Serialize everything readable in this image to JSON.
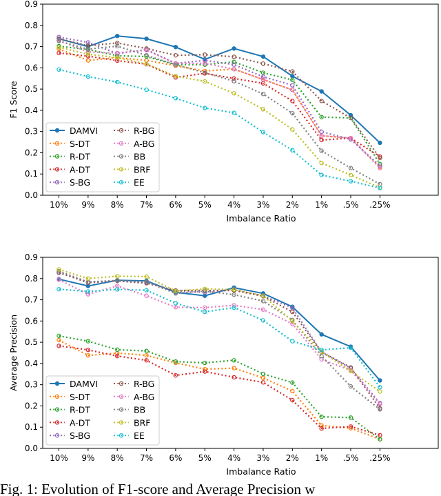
{
  "colors": {
    "DAMVI": "#1f77b4",
    "S-DT": "#ff7f0e",
    "R-DT": "#2ca02c",
    "A-DT": "#d62728",
    "S-BG": "#9467bd",
    "R-BG": "#8c564b",
    "A-BG": "#e377c2",
    "BB": "#7f7f7f",
    "BRF": "#bcbd22",
    "EE": "#17becf"
  },
  "caption": "Fig. 1: Evolution of F1-score and Average Precision w",
  "chart_data": [
    {
      "type": "line",
      "xlabel": "Imbalance Ratio",
      "ylabel": "F1 Score",
      "ylim": [
        0,
        0.9
      ],
      "yticks": [
        "0.0",
        "0.1",
        "0.2",
        "0.3",
        "0.4",
        "0.5",
        "0.6",
        "0.7",
        "0.8",
        "0.9"
      ],
      "categories": [
        "10%",
        "9%",
        "8%",
        "7%",
        "6%",
        "5%",
        "4%",
        "3%",
        "2%",
        "1%",
        ".5%",
        ".25%"
      ],
      "grid": false,
      "legend": "bottom-left",
      "series": [
        {
          "name": "DAMVI",
          "style": "solid",
          "values": [
            0.737,
            0.7,
            0.75,
            0.737,
            0.698,
            0.64,
            0.691,
            0.653,
            0.561,
            0.489,
            0.377,
            0.247
          ]
        },
        {
          "name": "S-DT",
          "style": "dotted",
          "values": [
            0.689,
            0.635,
            0.648,
            0.635,
            0.61,
            0.585,
            0.594,
            0.545,
            0.496,
            0.28,
            0.269,
            0.133
          ]
        },
        {
          "name": "R-DT",
          "style": "dotted",
          "values": [
            0.702,
            0.686,
            0.657,
            0.653,
            0.615,
            0.615,
            0.628,
            0.577,
            0.543,
            0.368,
            0.364,
            0.147
          ]
        },
        {
          "name": "A-DT",
          "style": "dotted",
          "values": [
            0.67,
            0.655,
            0.634,
            0.617,
            0.555,
            0.574,
            0.55,
            0.527,
            0.444,
            0.26,
            0.269,
            0.182
          ]
        },
        {
          "name": "S-BG",
          "style": "dotted",
          "values": [
            0.745,
            0.72,
            0.667,
            0.686,
            0.621,
            0.635,
            0.615,
            0.558,
            0.518,
            0.299,
            0.263,
            0.139
          ]
        },
        {
          "name": "R-BG",
          "style": "dotted",
          "values": [
            0.737,
            0.705,
            0.717,
            0.691,
            0.659,
            0.662,
            0.652,
            0.62,
            0.583,
            0.444,
            0.364,
            0.176
          ]
        },
        {
          "name": "A-BG",
          "style": "dotted",
          "values": [
            0.729,
            0.675,
            0.67,
            0.683,
            0.621,
            0.621,
            0.594,
            0.545,
            0.496,
            0.28,
            0.269,
            0.128
          ]
        },
        {
          "name": "BB",
          "style": "dotted",
          "values": [
            0.726,
            0.688,
            0.702,
            0.659,
            0.615,
            0.577,
            0.537,
            0.477,
            0.386,
            0.209,
            0.128,
            0.052
          ]
        },
        {
          "name": "BRF",
          "style": "dotted",
          "values": [
            0.697,
            0.664,
            0.648,
            0.618,
            0.561,
            0.536,
            0.48,
            0.405,
            0.31,
            0.152,
            0.095,
            0.036
          ]
        },
        {
          "name": "EE",
          "style": "dotted",
          "values": [
            0.592,
            0.559,
            0.533,
            0.497,
            0.457,
            0.411,
            0.388,
            0.297,
            0.212,
            0.095,
            0.066,
            0.034
          ]
        }
      ]
    },
    {
      "type": "line",
      "xlabel": "Imbalance Ratio",
      "ylabel": "Average Precision",
      "ylim": [
        0,
        0.9
      ],
      "yticks": [
        "0.0",
        "0.1",
        "0.2",
        "0.3",
        "0.4",
        "0.5",
        "0.6",
        "0.7",
        "0.8",
        "0.9"
      ],
      "categories": [
        "10%",
        "9%",
        "8%",
        "7%",
        "6%",
        "5%",
        "4%",
        "3%",
        "2%",
        "1%",
        ".5%",
        ".25%"
      ],
      "grid": false,
      "legend": "bottom-left",
      "series": [
        {
          "name": "DAMVI",
          "style": "solid",
          "values": [
            0.797,
            0.765,
            0.792,
            0.789,
            0.735,
            0.719,
            0.757,
            0.73,
            0.667,
            0.537,
            0.479,
            0.32
          ]
        },
        {
          "name": "S-DT",
          "style": "dotted",
          "values": [
            0.51,
            0.438,
            0.449,
            0.438,
            0.403,
            0.373,
            0.378,
            0.332,
            0.27,
            0.108,
            0.095,
            0.043
          ]
        },
        {
          "name": "R-DT",
          "style": "dotted",
          "values": [
            0.53,
            0.505,
            0.465,
            0.459,
            0.409,
            0.403,
            0.415,
            0.351,
            0.31,
            0.149,
            0.145,
            0.043
          ]
        },
        {
          "name": "A-DT",
          "style": "dotted",
          "values": [
            0.483,
            0.464,
            0.435,
            0.415,
            0.344,
            0.362,
            0.335,
            0.311,
            0.227,
            0.094,
            0.103,
            0.062
          ]
        },
        {
          "name": "S-BG",
          "style": "dotted",
          "values": [
            0.827,
            0.784,
            0.789,
            0.781,
            0.741,
            0.735,
            0.746,
            0.719,
            0.662,
            0.454,
            0.378,
            0.213
          ]
        },
        {
          "name": "R-BG",
          "style": "dotted",
          "values": [
            0.829,
            0.78,
            0.789,
            0.778,
            0.744,
            0.744,
            0.744,
            0.717,
            0.643,
            0.454,
            0.381,
            0.189
          ]
        },
        {
          "name": "A-BG",
          "style": "dotted",
          "values": [
            0.795,
            0.726,
            0.765,
            0.719,
            0.665,
            0.663,
            0.674,
            0.654,
            0.587,
            0.419,
            0.368,
            0.209
          ]
        },
        {
          "name": "BB",
          "style": "dotted",
          "values": [
            0.835,
            0.784,
            0.791,
            0.784,
            0.73,
            0.741,
            0.724,
            0.694,
            0.605,
            0.435,
            0.292,
            0.184
          ]
        },
        {
          "name": "BRF",
          "style": "dotted",
          "values": [
            0.843,
            0.8,
            0.811,
            0.809,
            0.741,
            0.751,
            0.748,
            0.719,
            0.6,
            0.454,
            0.365,
            0.268
          ]
        },
        {
          "name": "EE",
          "style": "dotted",
          "values": [
            0.75,
            0.739,
            0.749,
            0.745,
            0.684,
            0.643,
            0.663,
            0.603,
            0.505,
            0.464,
            0.474,
            0.288
          ]
        }
      ]
    }
  ]
}
